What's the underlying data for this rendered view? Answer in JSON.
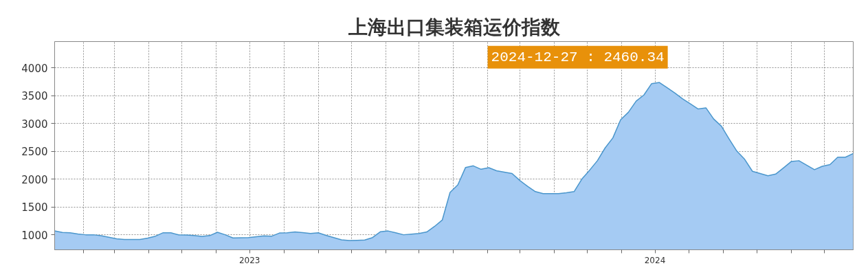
{
  "chart_data": {
    "type": "area",
    "title": "上海出口集装箱运价指数",
    "annotations": [
      "2024-12-27 : 2460.34"
    ],
    "x": [
      "2023-01-06",
      "2023-01-13",
      "2023-01-20",
      "2023-01-27",
      "2023-02-03",
      "2023-02-10",
      "2023-02-17",
      "2023-02-24",
      "2023-03-03",
      "2023-03-10",
      "2023-03-17",
      "2023-03-24",
      "2023-03-31",
      "2023-04-07",
      "2023-04-14",
      "2023-04-21",
      "2023-04-28",
      "2023-05-05",
      "2023-05-12",
      "2023-05-19",
      "2023-05-26",
      "2023-06-02",
      "2023-06-09",
      "2023-06-16",
      "2023-06-23",
      "2023-06-30",
      "2023-07-07",
      "2023-07-14",
      "2023-07-21",
      "2023-07-28",
      "2023-08-04",
      "2023-08-11",
      "2023-08-18",
      "2023-08-25",
      "2023-09-01",
      "2023-09-08",
      "2023-09-15",
      "2023-09-22",
      "2023-09-29",
      "2023-10-06",
      "2023-10-13",
      "2023-10-20",
      "2023-10-27",
      "2023-11-03",
      "2023-11-10",
      "2023-11-17",
      "2023-11-24",
      "2023-12-01",
      "2023-12-08",
      "2023-12-15",
      "2023-12-22",
      "2023-12-29",
      "2024-01-05",
      "2024-01-12",
      "2024-01-19",
      "2024-01-26",
      "2024-02-02",
      "2024-02-09",
      "2024-02-16",
      "2024-02-23",
      "2024-03-01",
      "2024-03-08",
      "2024-03-15",
      "2024-03-22",
      "2024-03-29",
      "2024-04-05",
      "2024-04-12",
      "2024-04-19",
      "2024-04-26",
      "2024-05-03",
      "2024-05-10",
      "2024-05-17",
      "2024-05-24",
      "2024-05-31",
      "2024-06-07",
      "2024-06-14",
      "2024-06-21",
      "2024-06-28",
      "2024-07-05",
      "2024-07-12",
      "2024-07-19",
      "2024-07-26",
      "2024-08-02",
      "2024-08-09",
      "2024-08-16",
      "2024-08-23",
      "2024-08-30",
      "2024-09-06",
      "2024-09-13",
      "2024-09-20",
      "2024-09-27",
      "2024-10-04",
      "2024-10-11",
      "2024-10-18",
      "2024-10-25",
      "2024-11-01",
      "2024-11-08",
      "2024-11-15",
      "2024-11-22",
      "2024-11-29",
      "2024-12-06",
      "2024-12-13",
      "2024-12-20",
      "2024-12-27"
    ],
    "series": [
      {
        "color": "#a5cbf3",
        "values": [
          1070,
          1041,
          1035,
          1015,
          1000,
          1000,
          982,
          955,
          928,
          914,
          914,
          916,
          940,
          975,
          1037,
          1035,
          998,
          995,
          985,
          970,
          985,
          1045,
          1000,
          943,
          946,
          950,
          965,
          980,
          975,
          1031,
          1035,
          1050,
          1038,
          1022,
          1035,
          990,
          950,
          910,
          898,
          900,
          905,
          950,
          1053,
          1068,
          1035,
          1000,
          1010,
          1022,
          1050,
          1150,
          1266,
          1760,
          1896,
          2209,
          2238,
          2176,
          2205,
          2150,
          2125,
          2100,
          1975,
          1870,
          1775,
          1738,
          1738,
          1740,
          1755,
          1775,
          2000,
          2160,
          2330,
          2560,
          2740,
          3066,
          3200,
          3400,
          3510,
          3715,
          3735,
          3640,
          3545,
          3440,
          3350,
          3260,
          3280,
          3080,
          2950,
          2720,
          2500,
          2355,
          2140,
          2100,
          2060,
          2090,
          2200,
          2315,
          2330,
          2250,
          2170,
          2230,
          2260,
          2393,
          2393,
          2460.34
        ]
      }
    ],
    "xlim": [
      "2023-01-06",
      "2024-12-27"
    ],
    "xticks": [
      {
        "value": "2023-02-01",
        "label": null
      },
      {
        "value": "2023-03-01",
        "label": null
      },
      {
        "value": "2023-04-01",
        "label": null
      },
      {
        "value": "2023-05-01",
        "label": null
      },
      {
        "value": "2023-06-01",
        "label": null
      },
      {
        "value": "2023-07-01",
        "label": "2023"
      },
      {
        "value": "2023-08-01",
        "label": null
      },
      {
        "value": "2023-09-01",
        "label": null
      },
      {
        "value": "2023-10-01",
        "label": null
      },
      {
        "value": "2023-11-01",
        "label": null
      },
      {
        "value": "2023-12-01",
        "label": null
      },
      {
        "value": "2024-01-01",
        "label": null
      },
      {
        "value": "2024-02-01",
        "label": null
      },
      {
        "value": "2024-03-01",
        "label": null
      },
      {
        "value": "2024-04-01",
        "label": null
      },
      {
        "value": "2024-05-01",
        "label": null
      },
      {
        "value": "2024-06-01",
        "label": null
      },
      {
        "value": "2024-07-01",
        "label": "2024"
      },
      {
        "value": "2024-08-01",
        "label": null
      },
      {
        "value": "2024-09-01",
        "label": null
      },
      {
        "value": "2024-10-01",
        "label": null
      },
      {
        "value": "2024-11-01",
        "label": null
      },
      {
        "value": "2024-12-01",
        "label": null
      }
    ],
    "ylim": [
      730,
      4470
    ],
    "yticks": [
      1000,
      1500,
      2000,
      2500,
      3000,
      3500,
      4000
    ],
    "grid": true
  }
}
